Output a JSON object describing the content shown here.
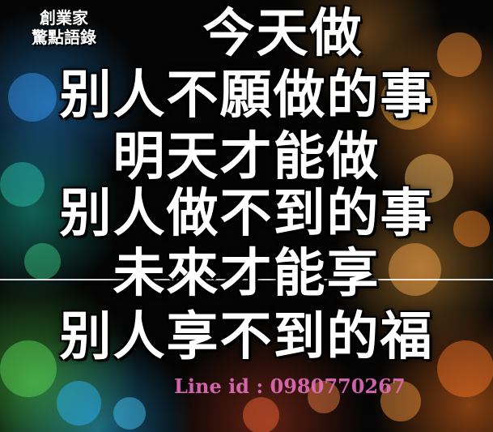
{
  "brand": {
    "line1": "創業家",
    "line2": "驚點語錄"
  },
  "quote": {
    "lines": [
      "今天做",
      "别人不願做的事",
      "明天才能做",
      "别人做不到的事",
      "未來才能享",
      "别人享不到的福"
    ]
  },
  "watermark": "Line id : 0980770267",
  "colors": {
    "text": "#ffffff",
    "background": "#050505",
    "watermark": "#e66ebe"
  }
}
